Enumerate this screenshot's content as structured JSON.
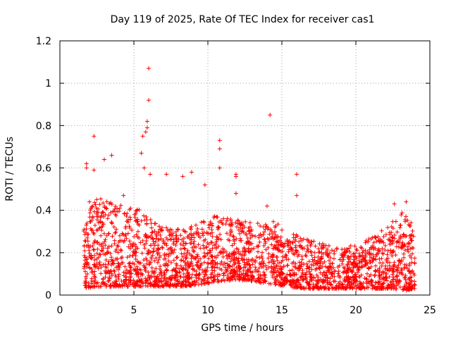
{
  "chart_data": {
    "type": "scatter",
    "title": "Day 119 of 2025, Rate Of TEC Index for receiver cas1",
    "xlabel": "GPS time / hours",
    "ylabel": "ROTI / TECUs",
    "xlim": [
      0,
      25
    ],
    "ylim": [
      0,
      1.2
    ],
    "x_ticks": [
      0,
      5,
      10,
      15,
      20,
      25
    ],
    "y_ticks": [
      0,
      0.2,
      0.4,
      0.6,
      0.8,
      1,
      1.2
    ],
    "x_tick_labels": [
      "0",
      "5",
      "10",
      "15",
      "20",
      "25"
    ],
    "y_tick_labels": [
      "0",
      "0.2",
      "0.4",
      "0.6",
      "0.8",
      "1",
      "1.2"
    ],
    "grid": true,
    "marker": "+",
    "series_color": "#ff0000",
    "x_range_of_data": [
      1.6,
      24.0
    ],
    "highlighted_points": [
      {
        "x": 2.3,
        "y": 0.75
      },
      {
        "x": 1.8,
        "y": 0.62
      },
      {
        "x": 1.8,
        "y": 0.6
      },
      {
        "x": 3.0,
        "y": 0.64
      },
      {
        "x": 3.5,
        "y": 0.66
      },
      {
        "x": 2.3,
        "y": 0.59
      },
      {
        "x": 5.5,
        "y": 0.67
      },
      {
        "x": 5.6,
        "y": 0.75
      },
      {
        "x": 5.8,
        "y": 0.77
      },
      {
        "x": 6.0,
        "y": 1.07
      },
      {
        "x": 6.0,
        "y": 0.92
      },
      {
        "x": 5.9,
        "y": 0.82
      },
      {
        "x": 5.9,
        "y": 0.79
      },
      {
        "x": 5.7,
        "y": 0.6
      },
      {
        "x": 6.1,
        "y": 0.57
      },
      {
        "x": 7.2,
        "y": 0.57
      },
      {
        "x": 8.3,
        "y": 0.56
      },
      {
        "x": 8.9,
        "y": 0.58
      },
      {
        "x": 10.8,
        "y": 0.73
      },
      {
        "x": 10.8,
        "y": 0.69
      },
      {
        "x": 10.8,
        "y": 0.6
      },
      {
        "x": 11.9,
        "y": 0.57
      },
      {
        "x": 11.9,
        "y": 0.56
      },
      {
        "x": 14.2,
        "y": 0.85
      },
      {
        "x": 16.0,
        "y": 0.57
      },
      {
        "x": 16.0,
        "y": 0.47
      },
      {
        "x": 14.0,
        "y": 0.42
      },
      {
        "x": 22.6,
        "y": 0.43
      },
      {
        "x": 23.4,
        "y": 0.44
      },
      {
        "x": 9.8,
        "y": 0.52
      },
      {
        "x": 11.9,
        "y": 0.48
      },
      {
        "x": 4.3,
        "y": 0.47
      },
      {
        "x": 2.0,
        "y": 0.44
      }
    ],
    "envelope": [
      {
        "x": 1.6,
        "base": 0.03,
        "spread": 0.32
      },
      {
        "x": 2.5,
        "base": 0.04,
        "spread": 0.42
      },
      {
        "x": 3.5,
        "base": 0.04,
        "spread": 0.4
      },
      {
        "x": 4.5,
        "base": 0.04,
        "spread": 0.38
      },
      {
        "x": 5.5,
        "base": 0.04,
        "spread": 0.36
      },
      {
        "x": 6.5,
        "base": 0.04,
        "spread": 0.3
      },
      {
        "x": 7.5,
        "base": 0.04,
        "spread": 0.27
      },
      {
        "x": 8.5,
        "base": 0.04,
        "spread": 0.28
      },
      {
        "x": 9.5,
        "base": 0.05,
        "spread": 0.3
      },
      {
        "x": 10.5,
        "base": 0.06,
        "spread": 0.32
      },
      {
        "x": 11.5,
        "base": 0.07,
        "spread": 0.3
      },
      {
        "x": 12.5,
        "base": 0.07,
        "spread": 0.28
      },
      {
        "x": 13.5,
        "base": 0.06,
        "spread": 0.28
      },
      {
        "x": 14.5,
        "base": 0.05,
        "spread": 0.3
      },
      {
        "x": 15.5,
        "base": 0.04,
        "spread": 0.26
      },
      {
        "x": 16.5,
        "base": 0.03,
        "spread": 0.24
      },
      {
        "x": 17.5,
        "base": 0.03,
        "spread": 0.22
      },
      {
        "x": 18.5,
        "base": 0.03,
        "spread": 0.2
      },
      {
        "x": 19.5,
        "base": 0.03,
        "spread": 0.2
      },
      {
        "x": 20.5,
        "base": 0.03,
        "spread": 0.22
      },
      {
        "x": 21.5,
        "base": 0.03,
        "spread": 0.26
      },
      {
        "x": 22.5,
        "base": 0.03,
        "spread": 0.32
      },
      {
        "x": 23.3,
        "base": 0.02,
        "spread": 0.38
      },
      {
        "x": 24.0,
        "base": 0.03,
        "spread": 0.28
      }
    ],
    "bulk_point_count": 2600
  }
}
